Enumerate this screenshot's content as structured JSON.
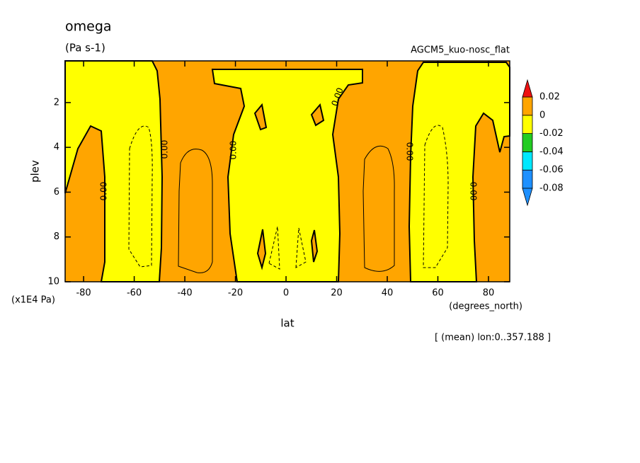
{
  "chart_data": {
    "type": "contour",
    "title": "omega",
    "subtitle": "(Pa s-1)",
    "annotation": "AGCM5_kuo-nosc_flat",
    "x_label": "lat",
    "x_unit": "(degrees_north)",
    "y_label": "plev",
    "y_unit": "(x1E4 Pa)",
    "footnote": "[ (mean) lon:0..357.188 ]",
    "xlim": [
      -87.3,
      88.4
    ],
    "xticks": [
      -80,
      -60,
      -40,
      -20,
      0,
      20,
      40,
      60,
      80
    ],
    "ylim": [
      10,
      0.14
    ],
    "yticks": [
      2,
      4,
      6,
      8,
      10
    ],
    "contour_labels": [
      "0.00",
      "0.00",
      "0.00",
      "0.00",
      "0.00",
      "0.00"
    ],
    "colorbar_levels": [
      -0.08,
      -0.06,
      -0.04,
      -0.02,
      0,
      0.02
    ],
    "colorbar_colors": [
      "#1e90ff",
      "#1e90ff",
      "#00e8ff",
      "#22cc22",
      "#ffff00",
      "#ffa500",
      "#ee1111"
    ]
  }
}
